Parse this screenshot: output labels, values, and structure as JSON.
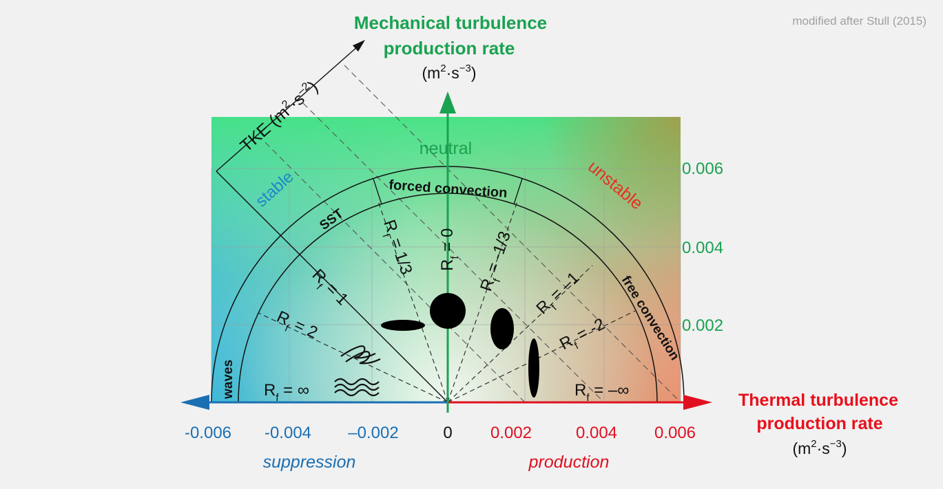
{
  "credit": "modified after Stull (2015)",
  "y_axis": {
    "title_line1": "Mechanical turbulence",
    "title_line2": "production rate",
    "unit_base": "(m",
    "unit_exp1": "2",
    "unit_mid": "·s",
    "unit_exp2": "−3",
    "unit_close": ")",
    "ticks": [
      "0.006",
      "0.004",
      "0.002"
    ],
    "color": "#1aa251"
  },
  "x_axis": {
    "title_line1": "Thermal turbulence",
    "title_line2": "production rate",
    "unit_base": "(m",
    "unit_exp1": "2",
    "unit_mid": "·s",
    "unit_exp2": "−3",
    "unit_close": ")",
    "ticks_negative": [
      "-0.006",
      "-0.004",
      "–0.002"
    ],
    "tick_zero": "0",
    "ticks_positive": [
      "0.002",
      "0.004",
      "0.006"
    ],
    "left_label": "suppression",
    "right_label": "production",
    "negative_color": "#1a6fb3",
    "positive_color": "#e01020",
    "title_color": "#e8101c"
  },
  "tke_axis": {
    "label": "TKE (m",
    "exp1": "2",
    "mid": "·s",
    "exp2": "–2",
    "close": ")"
  },
  "regions": {
    "neutral": "neutral",
    "stable": "stable",
    "unstable": "unstable",
    "stable_color": "#1e86c8",
    "neutral_color": "#1aa251",
    "unstable_color": "#e53022"
  },
  "arc_labels": {
    "sst": "SST",
    "forced": "forced convection",
    "free": "free convection",
    "waves": "waves"
  },
  "rf": {
    "symbol": "R",
    "sub": "f",
    "inf": " = ∞",
    "two": " = 2",
    "one": " = 1",
    "third": " = 1/3",
    "zero": " = 0",
    "neg_third": " = -1/3",
    "neg_one": " = –1",
    "neg_two": " = -2",
    "neg_inf": " = –∞"
  }
}
